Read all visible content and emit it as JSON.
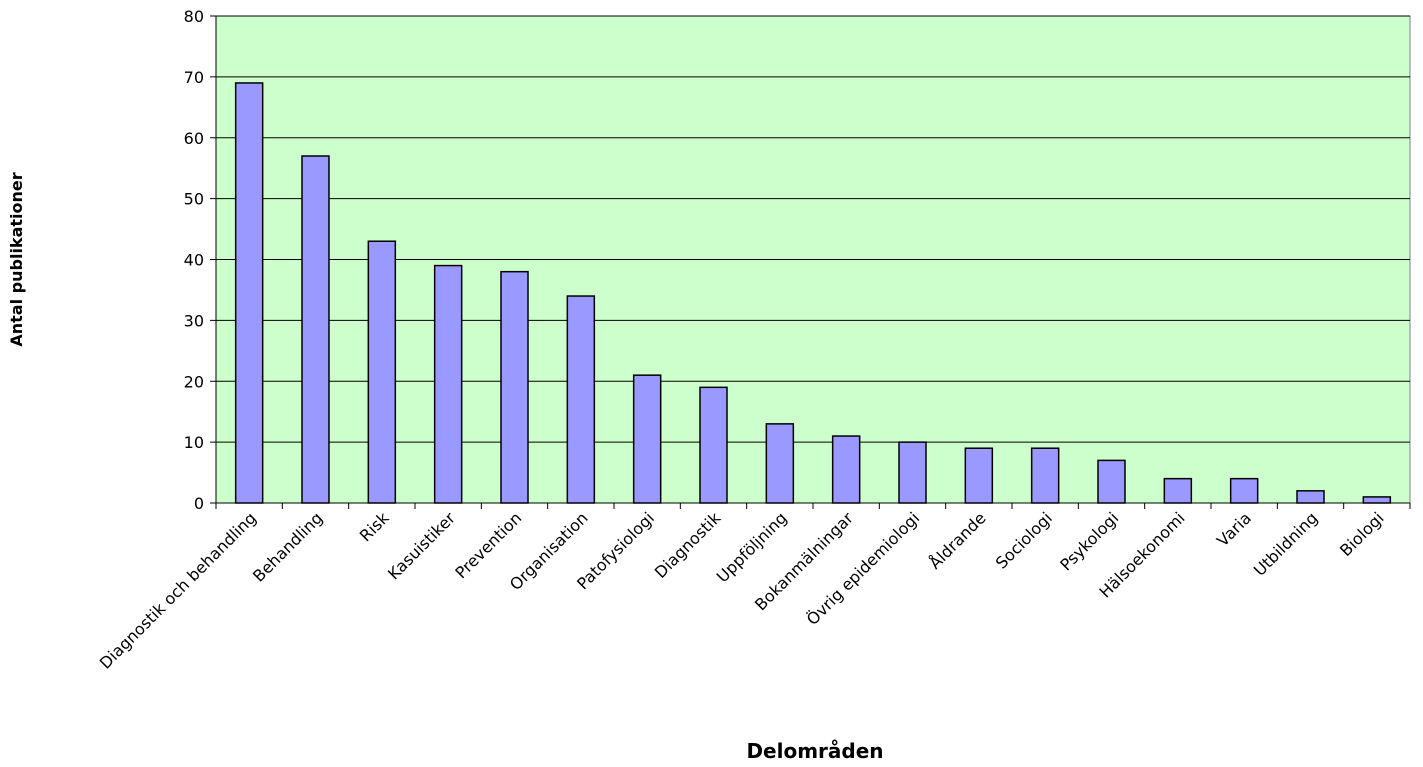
{
  "chart_data": {
    "type": "bar",
    "title": "",
    "xlabel": "Delområden",
    "ylabel": "Antal publikationer",
    "ylim": [
      0,
      80
    ],
    "yticks": [
      0,
      10,
      20,
      30,
      40,
      50,
      60,
      70,
      80
    ],
    "grid": true,
    "legend": "none",
    "categories": [
      "Diagnostik och behandling",
      "Behandling",
      "Risk",
      "Kasuistiker",
      "Prevention",
      "Organisation",
      "Patofysiologi",
      "Diagnostik",
      "Uppföljning",
      "Bokanmälningar",
      "Övrig epidemiologi",
      "Åldrande",
      "Sociologi",
      "Psykologi",
      "Hälsoekonomi",
      "Varia",
      "Utbildning",
      "Biologi"
    ],
    "values": [
      69,
      57,
      43,
      39,
      38,
      34,
      21,
      19,
      13,
      11,
      10,
      9,
      9,
      7,
      4,
      4,
      2,
      1
    ],
    "colors": {
      "plot_background": "#ccffcc",
      "bar_fill": "#9999ff",
      "bar_stroke": "#000000",
      "grid": "#000000"
    }
  }
}
